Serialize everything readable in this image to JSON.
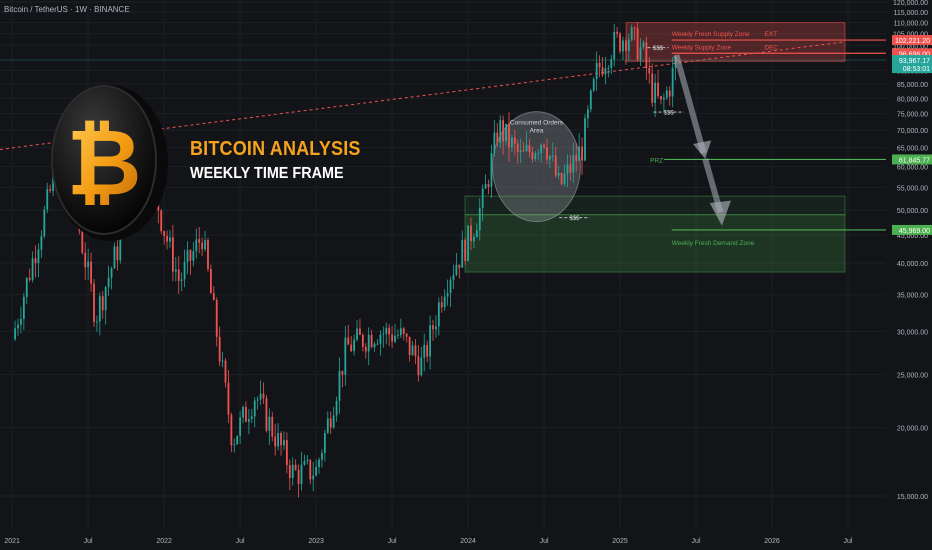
{
  "header": {
    "symbol": "Bitcoin / TetherUS · 1W · BINANCE"
  },
  "overlay": {
    "title": "BITCOIN ANALYSIS",
    "subtitle": "WEEKLY TIME FRAME",
    "coin_symbol": "₿"
  },
  "colors": {
    "bull": "#26a69a",
    "bear": "#ef5350",
    "title": "#f7a21b",
    "supply": "#ef5350",
    "demand": "#4caf50",
    "background": "#121418"
  },
  "chart_data": {
    "type": "candlestick",
    "ylim": [
      13000,
      121000
    ],
    "y_ticks": [
      {
        "v": 120000,
        "t": "120,000.00"
      },
      {
        "v": 115000,
        "t": "115,000.00"
      },
      {
        "v": 110000,
        "t": "110,000.00"
      },
      {
        "v": 105000,
        "t": "105,000.00"
      },
      {
        "v": 100000,
        "t": "100,000.00"
      },
      {
        "v": 90000,
        "t": "90,000.00"
      },
      {
        "v": 85000,
        "t": "85,000.00"
      },
      {
        "v": 80000,
        "t": "80,000.00"
      },
      {
        "v": 75000,
        "t": "75,000.00"
      },
      {
        "v": 70000,
        "t": "70,000.00"
      },
      {
        "v": 65000,
        "t": "65,000.00"
      },
      {
        "v": 60000,
        "t": "60,000.00"
      },
      {
        "v": 55000,
        "t": "55,000.00"
      },
      {
        "v": 50000,
        "t": "50,000.00"
      },
      {
        "v": 45000,
        "t": "45,000.00"
      },
      {
        "v": 40000,
        "t": "40,000.00"
      },
      {
        "v": 35000,
        "t": "35,000.00"
      },
      {
        "v": 30000,
        "t": "30,000.00"
      },
      {
        "v": 25000,
        "t": "25,000.00"
      },
      {
        "v": 20000,
        "t": "20,000.00"
      },
      {
        "v": 15000,
        "t": "15,000.00"
      }
    ],
    "x_ticks": [
      "2021",
      "Jul",
      "2022",
      "Jul",
      "2023",
      "Jul",
      "2024",
      "Jul",
      "2025",
      "Jul",
      "2026",
      "Jul"
    ],
    "x_tick_positions": [
      2021.0,
      2021.5,
      2022.0,
      2022.5,
      2023.0,
      2023.5,
      2024.0,
      2024.5,
      2025.0,
      2025.5,
      2026.0,
      2026.5
    ],
    "xlim": [
      2020.92,
      2026.75
    ],
    "price_labels": [
      {
        "value": 102221.2,
        "text": "102,221.20",
        "kind": "supply"
      },
      {
        "value": 96696.0,
        "text": "96,696.00",
        "kind": "supply"
      },
      {
        "value": 93967.17,
        "text": "93,967.17",
        "kind": "current",
        "countdown": "08:53:01"
      },
      {
        "value": 61845.77,
        "text": "61,845.77",
        "kind": "demand"
      },
      {
        "value": 45969.0,
        "text": "45,969.00",
        "kind": "demand"
      }
    ],
    "zones": [
      {
        "name": "Weekly Fresh Supply Zone",
        "tag": "EXT",
        "kind": "supply",
        "from": 2025.04,
        "to": 2026.48,
        "low": 93500,
        "high": 110000
      },
      {
        "name": "Weekly Fresh Demand Zone",
        "kind": "demand",
        "from": 2023.98,
        "to": 2026.48,
        "low": 38500,
        "high": 49000
      },
      {
        "name": "",
        "kind": "demand-light",
        "from": 2023.98,
        "to": 2026.48,
        "low": 49000,
        "high": 53000
      }
    ],
    "levels": [
      {
        "label": "Weekly Fresh Supply Zone",
        "tag": "EXT",
        "value": 102221.2
      },
      {
        "label": "Weekly Supply Zone",
        "tag": "DEC",
        "value": 96696.0
      },
      {
        "label": "PRZ",
        "value": 61845.77
      },
      {
        "label": "Weekly Fresh Demand Zone",
        "value": 45969.0
      }
    ],
    "liquidity_marks": [
      {
        "text": "$$$",
        "value": 99000,
        "from": 2025.18,
        "to": 2025.32
      },
      {
        "text": "$$$",
        "value": 75500,
        "from": 2025.22,
        "to": 2025.42
      },
      {
        "text": "$$$",
        "value": 48400,
        "from": 2024.6,
        "to": 2024.8
      }
    ],
    "annotations": [
      {
        "text": "Consumed Orders Area",
        "center": [
          2024.45,
          60000
        ]
      }
    ],
    "trendline": {
      "from": [
        2020.92,
        64500
      ],
      "to": [
        2026.48,
        101500
      ]
    },
    "current_price": 93967.17,
    "key_points": [
      [
        2021.0,
        29000
      ],
      [
        2021.28,
        58000
      ],
      [
        2021.37,
        59000
      ],
      [
        2021.55,
        32000
      ],
      [
        2021.7,
        43000
      ],
      [
        2021.85,
        68000
      ],
      [
        2022.0,
        46000
      ],
      [
        2022.1,
        37000
      ],
      [
        2022.25,
        45000
      ],
      [
        2022.45,
        19000
      ],
      [
        2022.6,
        23000
      ],
      [
        2022.85,
        16500
      ],
      [
        2023.0,
        16700
      ],
      [
        2023.2,
        28000
      ],
      [
        2023.4,
        30000
      ],
      [
        2023.55,
        29500
      ],
      [
        2023.7,
        26000
      ],
      [
        2023.85,
        37000
      ],
      [
        2024.0,
        44000
      ],
      [
        2024.1,
        52000
      ],
      [
        2024.2,
        71000
      ],
      [
        2024.35,
        62000
      ],
      [
        2024.5,
        68000
      ],
      [
        2024.6,
        55000
      ],
      [
        2024.75,
        65000
      ],
      [
        2024.85,
        90000
      ],
      [
        2024.95,
        100000
      ],
      [
        2025.05,
        105000
      ],
      [
        2025.15,
        97000
      ],
      [
        2025.2,
        84000
      ],
      [
        2025.27,
        77000
      ],
      [
        2025.33,
        85000
      ],
      [
        2025.37,
        94000
      ]
    ]
  }
}
